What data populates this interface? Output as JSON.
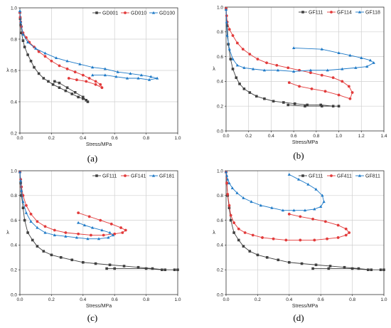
{
  "chart_data": [
    {
      "type": "scatter",
      "panel_label": "(a)",
      "xlabel": "Stress/MPa",
      "ylabel": "λ",
      "xlim": [
        0,
        1.0
      ],
      "ylim": [
        0.2,
        1.0
      ],
      "xticks": [
        "0.0",
        "0.2",
        "0.4",
        "0.6",
        "0.8",
        "1.0"
      ],
      "yticks": [
        "0.2",
        "0.4",
        "0.6",
        "0.8",
        "1.0"
      ],
      "grid": true,
      "legend": "top-right",
      "series": [
        {
          "name": "GD001",
          "color": "#404040",
          "marker": "square",
          "x": [
            0.0,
            0.002,
            0.005,
            0.01,
            0.02,
            0.03,
            0.05,
            0.07,
            0.09,
            0.12,
            0.15,
            0.18,
            0.21,
            0.25,
            0.29,
            0.33,
            0.37,
            0.4,
            0.42,
            0.43,
            0.4,
            0.35,
            0.3,
            0.25,
            0.22
          ],
          "y": [
            0.97,
            0.93,
            0.89,
            0.84,
            0.79,
            0.75,
            0.7,
            0.66,
            0.62,
            0.58,
            0.55,
            0.53,
            0.51,
            0.49,
            0.47,
            0.45,
            0.43,
            0.42,
            0.41,
            0.4,
            0.43,
            0.46,
            0.49,
            0.52,
            0.53
          ]
        },
        {
          "name": "GD010",
          "color": "#e23b3b",
          "marker": "circle",
          "x": [
            0.0,
            0.002,
            0.005,
            0.01,
            0.02,
            0.04,
            0.06,
            0.09,
            0.12,
            0.16,
            0.2,
            0.25,
            0.3,
            0.35,
            0.4,
            0.44,
            0.48,
            0.51,
            0.52,
            0.48,
            0.42,
            0.36,
            0.31
          ],
          "y": [
            0.97,
            0.94,
            0.91,
            0.88,
            0.84,
            0.81,
            0.78,
            0.75,
            0.72,
            0.69,
            0.66,
            0.63,
            0.61,
            0.59,
            0.57,
            0.55,
            0.53,
            0.51,
            0.49,
            0.51,
            0.53,
            0.54,
            0.55
          ]
        },
        {
          "name": "GD100",
          "color": "#1f7ac7",
          "marker": "triangle",
          "x": [
            0.0,
            0.005,
            0.02,
            0.05,
            0.1,
            0.16,
            0.23,
            0.3,
            0.38,
            0.46,
            0.54,
            0.62,
            0.7,
            0.77,
            0.83,
            0.87,
            0.82,
            0.75,
            0.68,
            0.61,
            0.54,
            0.46
          ],
          "y": [
            0.98,
            0.91,
            0.83,
            0.78,
            0.74,
            0.71,
            0.68,
            0.66,
            0.64,
            0.62,
            0.61,
            0.59,
            0.58,
            0.57,
            0.56,
            0.55,
            0.54,
            0.55,
            0.55,
            0.56,
            0.57,
            0.57
          ]
        }
      ]
    },
    {
      "type": "scatter",
      "panel_label": "(b)",
      "xlabel": "Stress/MPa",
      "ylabel": "λ",
      "xlim": [
        0,
        1.4
      ],
      "ylim": [
        0.0,
        1.0
      ],
      "xticks": [
        "0.0",
        "0.2",
        "0.4",
        "0.6",
        "0.8",
        "1.0",
        "1.2",
        "1.4"
      ],
      "yticks": [
        "0.0",
        "0.2",
        "0.4",
        "0.6",
        "0.8",
        "1.0"
      ],
      "grid": true,
      "legend": "top-right",
      "series": [
        {
          "name": "GF111",
          "color": "#404040",
          "marker": "square",
          "x": [
            0.0,
            0.01,
            0.02,
            0.04,
            0.06,
            0.09,
            0.12,
            0.16,
            0.21,
            0.27,
            0.34,
            0.42,
            0.51,
            0.61,
            0.72,
            0.84,
            0.95,
            1.0,
            0.85,
            0.7,
            0.55
          ],
          "y": [
            0.99,
            0.85,
            0.7,
            0.58,
            0.5,
            0.43,
            0.38,
            0.34,
            0.31,
            0.28,
            0.26,
            0.24,
            0.23,
            0.22,
            0.21,
            0.21,
            0.2,
            0.2,
            0.2,
            0.2,
            0.21
          ]
        },
        {
          "name": "GF114",
          "color": "#e23b3b",
          "marker": "circle",
          "x": [
            0.0,
            0.005,
            0.01,
            0.03,
            0.06,
            0.1,
            0.15,
            0.21,
            0.28,
            0.36,
            0.45,
            0.55,
            0.65,
            0.75,
            0.85,
            0.95,
            1.03,
            1.09,
            1.12,
            1.1,
            1.0,
            0.88,
            0.76,
            0.65,
            0.56
          ],
          "y": [
            0.99,
            0.93,
            0.88,
            0.82,
            0.77,
            0.71,
            0.66,
            0.62,
            0.58,
            0.55,
            0.53,
            0.51,
            0.49,
            0.47,
            0.45,
            0.43,
            0.4,
            0.36,
            0.31,
            0.26,
            0.29,
            0.32,
            0.34,
            0.36,
            0.39
          ]
        },
        {
          "name": "GF118",
          "color": "#1f7ac7",
          "marker": "triangle",
          "x": [
            0.0,
            0.005,
            0.01,
            0.03,
            0.06,
            0.1,
            0.16,
            0.24,
            0.34,
            0.46,
            0.6,
            0.75,
            0.9,
            1.03,
            1.15,
            1.25,
            1.31,
            1.28,
            1.2,
            1.1,
            1.0,
            0.85,
            0.6
          ],
          "y": [
            0.98,
            0.88,
            0.77,
            0.66,
            0.58,
            0.53,
            0.51,
            0.5,
            0.49,
            0.49,
            0.48,
            0.49,
            0.49,
            0.5,
            0.51,
            0.52,
            0.55,
            0.57,
            0.59,
            0.61,
            0.63,
            0.66,
            0.67
          ]
        }
      ]
    },
    {
      "type": "scatter",
      "panel_label": "(c)",
      "xlabel": "Stress/MPa",
      "ylabel": "λ",
      "xlim": [
        0,
        1.0
      ],
      "ylim": [
        0.0,
        1.0
      ],
      "xticks": [
        "0.0",
        "0.2",
        "0.4",
        "0.6",
        "0.8",
        "1.0"
      ],
      "yticks": [
        "0.0",
        "0.2",
        "0.4",
        "0.6",
        "0.8",
        "1.0"
      ],
      "grid": true,
      "legend": "top-right",
      "series": [
        {
          "name": "GF111",
          "color": "#404040",
          "marker": "square",
          "x": [
            0.0,
            0.005,
            0.01,
            0.02,
            0.03,
            0.05,
            0.08,
            0.11,
            0.15,
            0.2,
            0.26,
            0.33,
            0.4,
            0.48,
            0.57,
            0.66,
            0.75,
            0.84,
            0.92,
            0.98,
            1.0,
            0.9,
            0.8,
            0.6,
            0.55
          ],
          "y": [
            0.99,
            0.9,
            0.8,
            0.7,
            0.6,
            0.5,
            0.44,
            0.39,
            0.35,
            0.32,
            0.3,
            0.28,
            0.26,
            0.25,
            0.24,
            0.23,
            0.22,
            0.21,
            0.2,
            0.2,
            0.2,
            0.2,
            0.21,
            0.21,
            0.21
          ]
        },
        {
          "name": "GF141",
          "color": "#e23b3b",
          "marker": "circle",
          "x": [
            0.0,
            0.005,
            0.01,
            0.02,
            0.04,
            0.07,
            0.11,
            0.16,
            0.22,
            0.29,
            0.37,
            0.45,
            0.53,
            0.6,
            0.65,
            0.67,
            0.64,
            0.58,
            0.51,
            0.44,
            0.37
          ],
          "y": [
            0.99,
            0.93,
            0.87,
            0.8,
            0.72,
            0.65,
            0.59,
            0.55,
            0.52,
            0.5,
            0.49,
            0.48,
            0.48,
            0.49,
            0.5,
            0.52,
            0.54,
            0.57,
            0.6,
            0.63,
            0.66
          ]
        },
        {
          "name": "GF181",
          "color": "#1f7ac7",
          "marker": "triangle",
          "x": [
            0.0,
            0.005,
            0.01,
            0.02,
            0.04,
            0.07,
            0.11,
            0.16,
            0.22,
            0.29,
            0.36,
            0.43,
            0.5,
            0.56,
            0.59,
            0.57,
            0.52,
            0.46,
            0.41,
            0.37
          ],
          "y": [
            0.99,
            0.92,
            0.84,
            0.75,
            0.66,
            0.59,
            0.54,
            0.5,
            0.48,
            0.47,
            0.46,
            0.45,
            0.45,
            0.46,
            0.48,
            0.5,
            0.52,
            0.54,
            0.56,
            0.58
          ]
        }
      ]
    },
    {
      "type": "scatter",
      "panel_label": "(d)",
      "xlabel": "Stress/MPa",
      "ylabel": "λ",
      "xlim": [
        0,
        1.0
      ],
      "ylim": [
        0.0,
        1.0
      ],
      "xticks": [
        "0.0",
        "0.2",
        "0.4",
        "0.6",
        "0.8",
        "1.0"
      ],
      "yticks": [
        "0.0",
        "0.2",
        "0.4",
        "0.6",
        "0.8",
        "1.0"
      ],
      "grid": true,
      "legend": "top-right",
      "series": [
        {
          "name": "GF111",
          "color": "#404040",
          "marker": "square",
          "x": [
            0.0,
            0.005,
            0.01,
            0.02,
            0.03,
            0.05,
            0.08,
            0.11,
            0.15,
            0.2,
            0.26,
            0.33,
            0.4,
            0.48,
            0.57,
            0.66,
            0.75,
            0.84,
            0.92,
            0.98,
            1.0,
            0.9,
            0.8,
            0.65,
            0.55
          ],
          "y": [
            0.99,
            0.9,
            0.8,
            0.7,
            0.6,
            0.5,
            0.44,
            0.39,
            0.35,
            0.32,
            0.3,
            0.28,
            0.26,
            0.25,
            0.24,
            0.23,
            0.22,
            0.21,
            0.2,
            0.2,
            0.2,
            0.2,
            0.21,
            0.21,
            0.21
          ]
        },
        {
          "name": "GF411",
          "color": "#e23b3b",
          "marker": "circle",
          "x": [
            0.0,
            0.005,
            0.01,
            0.02,
            0.03,
            0.05,
            0.08,
            0.12,
            0.17,
            0.23,
            0.3,
            0.38,
            0.47,
            0.56,
            0.64,
            0.71,
            0.76,
            0.78,
            0.76,
            0.71,
            0.63,
            0.55,
            0.47,
            0.4
          ],
          "y": [
            0.99,
            0.9,
            0.81,
            0.72,
            0.64,
            0.58,
            0.53,
            0.5,
            0.48,
            0.46,
            0.45,
            0.44,
            0.44,
            0.44,
            0.45,
            0.46,
            0.48,
            0.5,
            0.53,
            0.56,
            0.59,
            0.61,
            0.63,
            0.65
          ]
        },
        {
          "name": "GF811",
          "color": "#1f7ac7",
          "marker": "triangle",
          "x": [
            0.0,
            0.005,
            0.01,
            0.02,
            0.04,
            0.07,
            0.11,
            0.16,
            0.22,
            0.29,
            0.36,
            0.43,
            0.5,
            0.56,
            0.6,
            0.62,
            0.61,
            0.57,
            0.52,
            0.46,
            0.4
          ],
          "y": [
            0.99,
            0.96,
            0.93,
            0.9,
            0.86,
            0.82,
            0.78,
            0.75,
            0.72,
            0.7,
            0.68,
            0.68,
            0.68,
            0.69,
            0.71,
            0.75,
            0.8,
            0.85,
            0.89,
            0.93,
            0.97
          ]
        }
      ]
    }
  ]
}
